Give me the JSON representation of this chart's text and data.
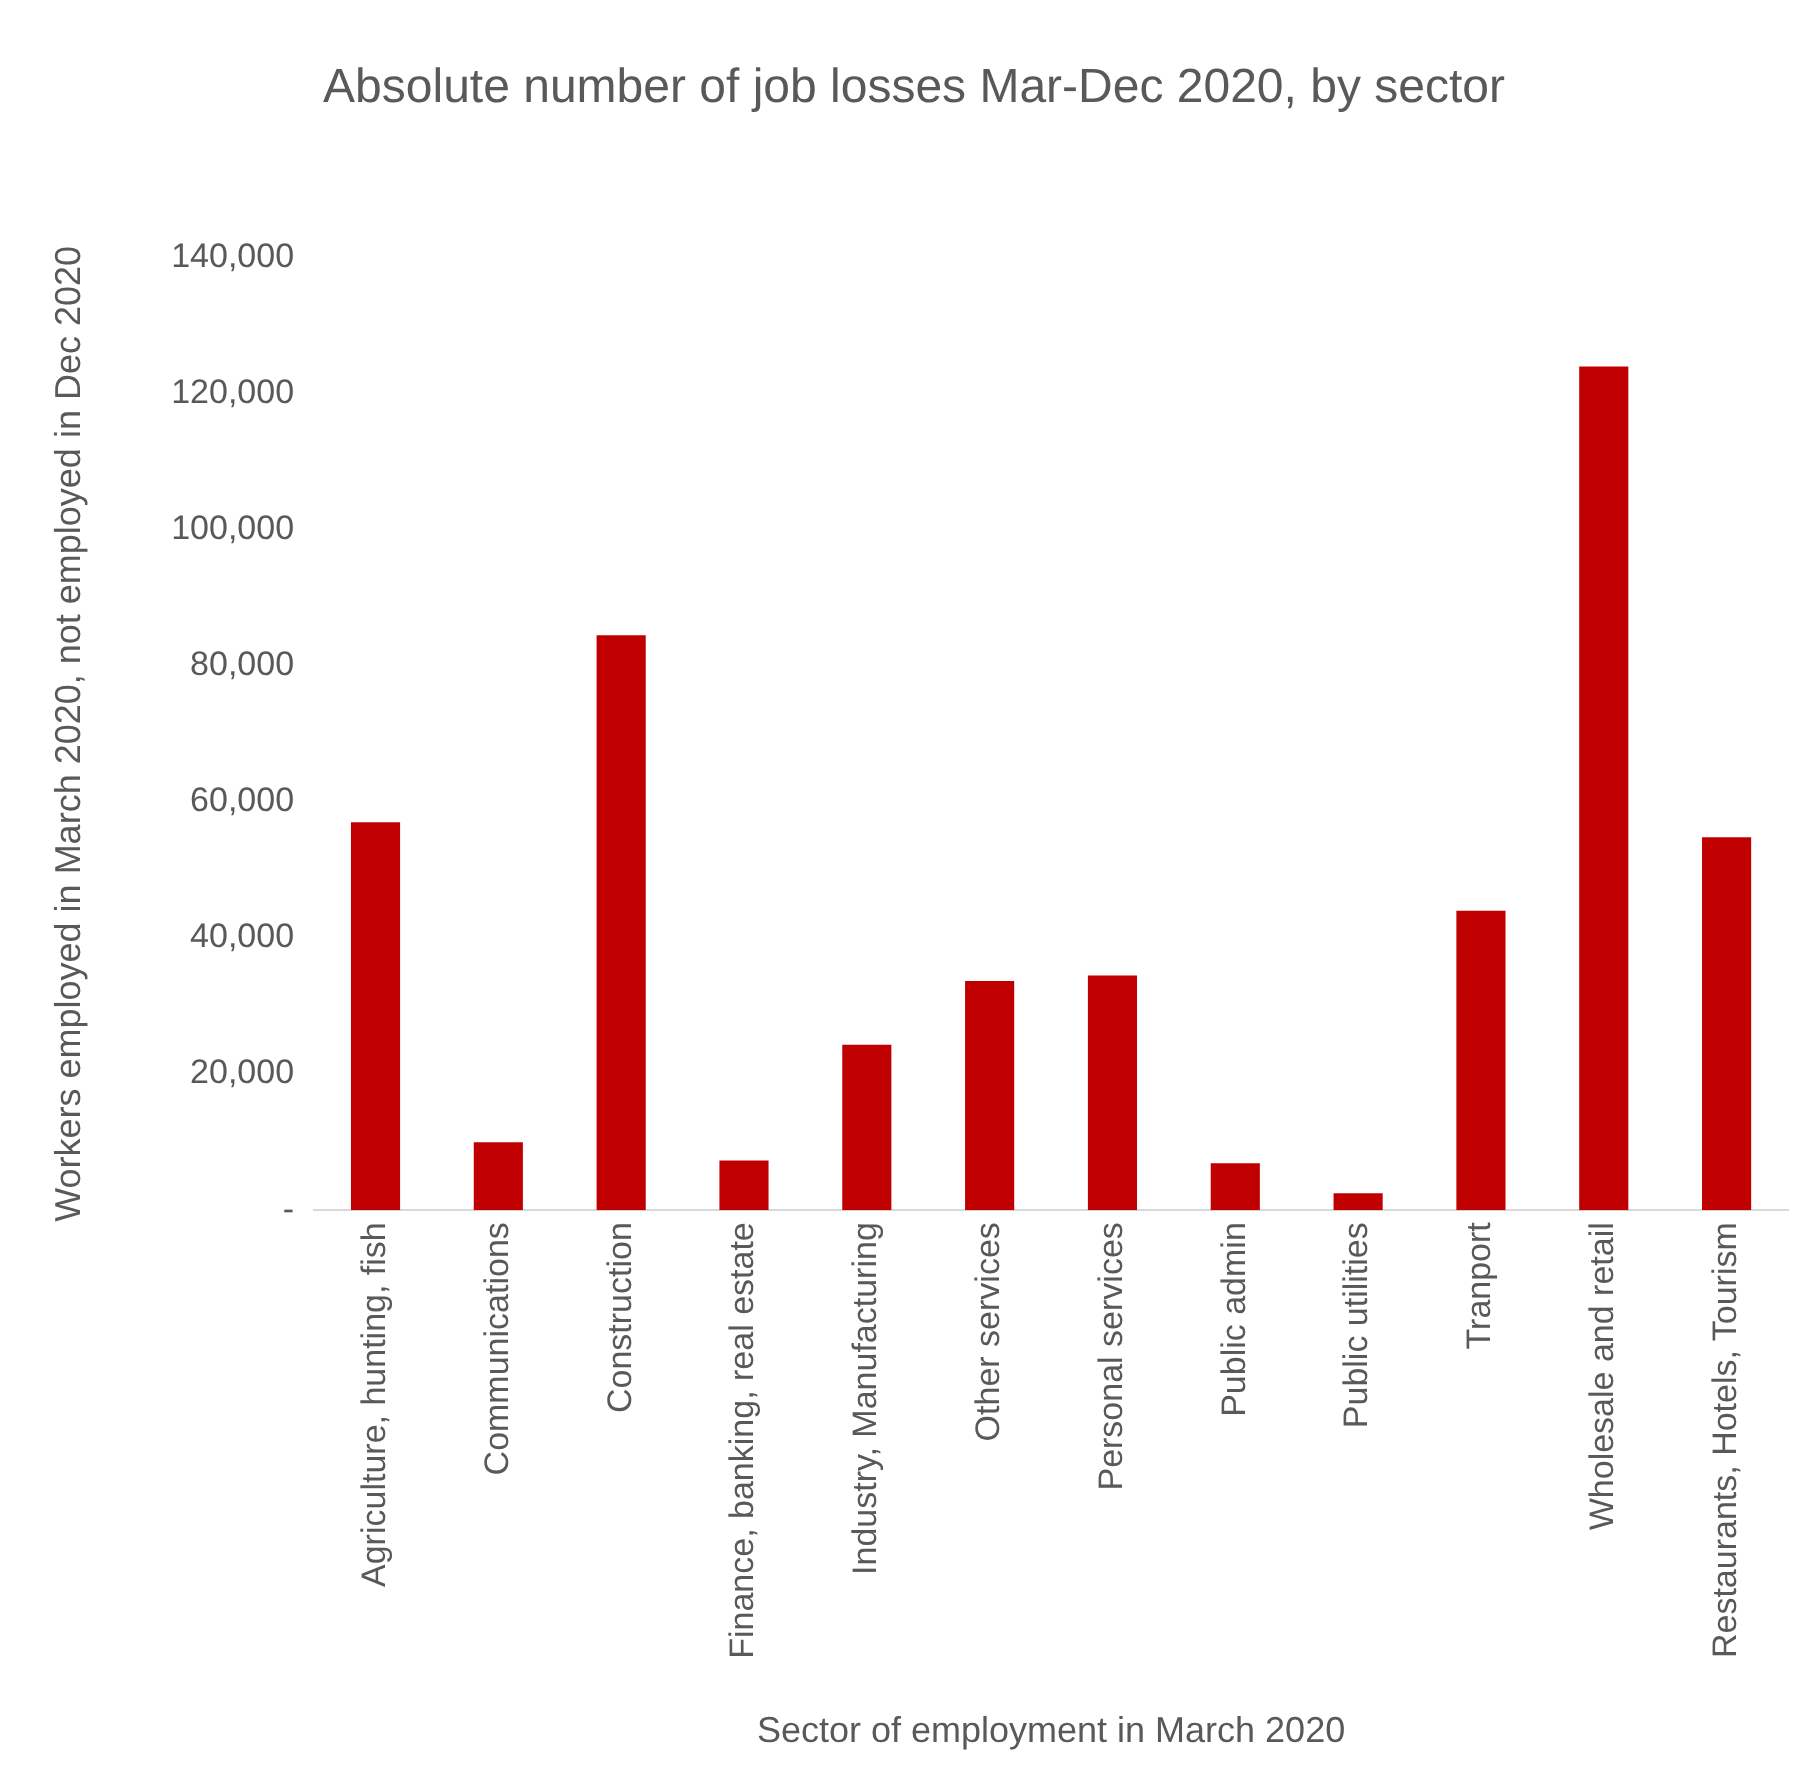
{
  "chart_data": {
    "type": "bar",
    "title": "Absolute number of job losses Mar-Dec 2020, by sector",
    "xlabel": "Sector of employment in March 2020",
    "ylabel": "Workers employed in March 2020, not employed in Dec 2020",
    "categories": [
      "Agriculture, hunting, fish",
      "Communications",
      "Construction",
      "Finance, banking, real estate",
      "Industry, Manufacturing",
      "Other services",
      "Personal services",
      "Public admin",
      "Public utilities",
      "Tranport",
      "Wholesale and retail",
      "Restaurants, Hotels, Tourism"
    ],
    "values": [
      57000,
      10000,
      84500,
      7300,
      24300,
      33700,
      34500,
      6900,
      2500,
      44000,
      124000,
      54800
    ],
    "color": "#c00000",
    "ylim": [
      0,
      140000
    ],
    "yticks": [
      {
        "value": 0,
        "label": "-"
      },
      {
        "value": 20000,
        "label": "20,000"
      },
      {
        "value": 40000,
        "label": "40,000"
      },
      {
        "value": 60000,
        "label": "60,000"
      },
      {
        "value": 80000,
        "label": "80,000"
      },
      {
        "value": 100000,
        "label": "100,000"
      },
      {
        "value": 120000,
        "label": "120,000"
      },
      {
        "value": 140000,
        "label": "140,000"
      }
    ],
    "grid": false,
    "legend": false
  }
}
